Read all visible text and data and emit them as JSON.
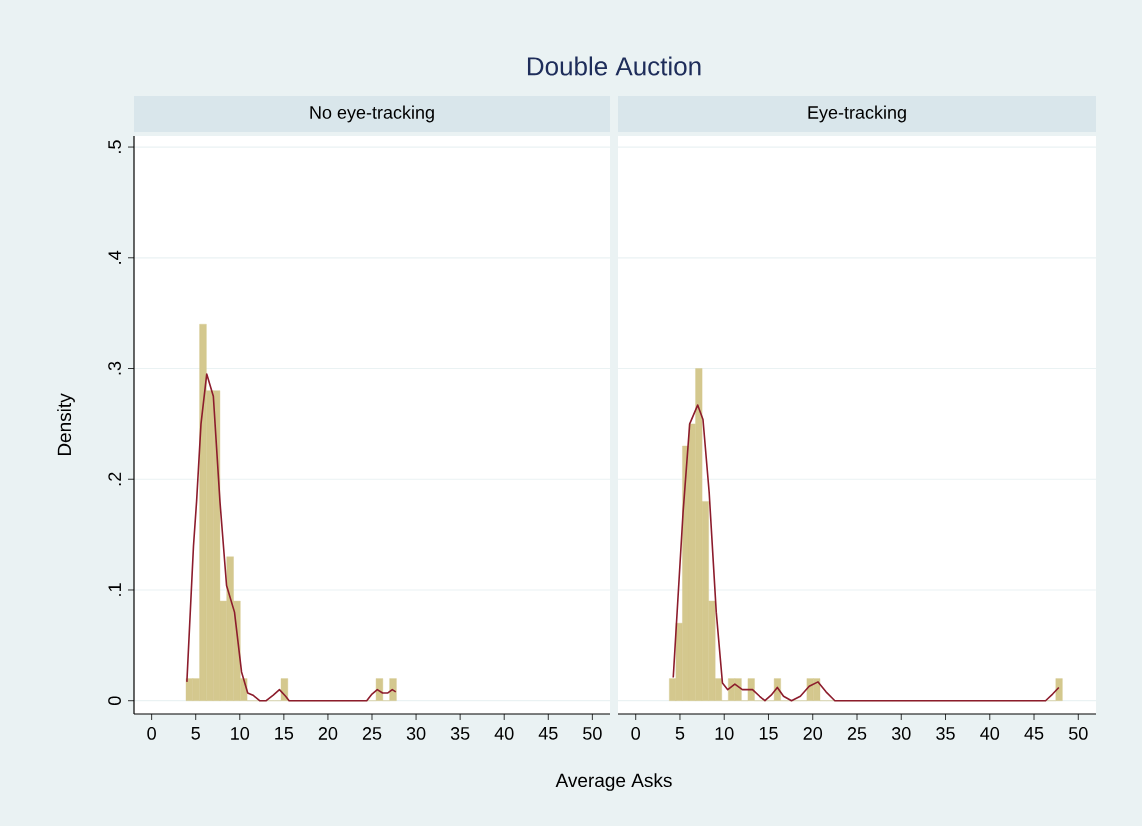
{
  "chart_data": [
    {
      "type": "histogram",
      "title": "Double Auction",
      "subtitle": "No eye-tracking",
      "xlabel": "Average Asks",
      "ylabel": "Density",
      "bins": [
        3.9,
        4.67,
        5.44,
        6.21,
        6.98,
        7.75,
        8.52,
        9.29,
        10.06,
        10.83,
        11.6,
        12.37,
        13.14,
        13.91,
        14.68,
        15.45,
        16.22,
        16.99,
        17.76,
        18.53,
        19.3,
        20.07,
        20.84,
        21.61,
        22.38,
        23.15,
        23.92,
        24.69,
        25.46,
        26.23,
        27.0,
        27.77
      ],
      "values": [
        0.02,
        0.02,
        0.34,
        0.28,
        0.28,
        0.09,
        0.13,
        0.09,
        0.02,
        0,
        0,
        0,
        0,
        0,
        0.02,
        0,
        0,
        0,
        0,
        0,
        0,
        0,
        0,
        0,
        0,
        0,
        0,
        0,
        0.02,
        0,
        0.02
      ],
      "color": "#d4c88e",
      "series": [
        {
          "type": "line",
          "color": "#8c1c2c",
          "x": [
            4.0,
            4.75,
            5.1,
            5.6,
            6.25,
            7.0,
            7.75,
            8.5,
            9.4,
            10.2,
            10.9,
            11.5,
            12.25,
            13.0,
            13.8,
            14.5,
            15.2,
            15.6,
            24.4,
            25.0,
            25.6,
            26.2,
            26.8,
            27.3,
            27.7
          ],
          "values": [
            0.017,
            0.14,
            0.18,
            0.25,
            0.295,
            0.275,
            0.18,
            0.104,
            0.08,
            0.026,
            0.007,
            0.005,
            0,
            0,
            0.005,
            0.01,
            0.004,
            0,
            0,
            0.006,
            0.01,
            0.007,
            0.007,
            0.01,
            0.008
          ]
        }
      ],
      "xlim": [
        -2,
        52
      ],
      "ylim": [
        -0.012,
        0.51
      ],
      "xticks": [
        0,
        5,
        10,
        15,
        20,
        25,
        30,
        35,
        40,
        45,
        50
      ],
      "yticks": [
        {
          "value": 0,
          "label": "0"
        },
        {
          "value": 0.1,
          "label": ".1"
        },
        {
          "value": 0.2,
          "label": ".2"
        },
        {
          "value": 0.3,
          "label": ".3"
        },
        {
          "value": 0.4,
          "label": ".4"
        },
        {
          "value": 0.5,
          "label": ".5"
        }
      ],
      "grid": "y"
    },
    {
      "type": "histogram",
      "subtitle": "Eye-tracking",
      "bins": [
        3.8,
        4.54,
        5.28,
        6.02,
        6.76,
        7.5,
        8.24,
        8.98,
        9.72,
        10.46,
        11.2,
        11.94,
        12.68,
        13.42,
        14.16,
        14.9,
        15.64,
        16.38,
        17.12,
        17.86,
        18.6,
        19.34,
        20.08,
        20.82,
        21.56,
        22.3,
        23.04,
        23.78,
        24.52,
        25.26,
        26.0,
        26.74,
        27.48,
        28.22,
        28.96,
        29.7,
        30.44,
        31.18,
        31.92,
        32.66,
        33.4,
        34.14,
        34.88,
        35.62,
        36.36,
        37.1,
        37.84,
        38.58,
        39.32,
        40.06,
        40.8,
        41.54,
        42.28,
        43.02,
        43.76,
        44.5,
        45.24,
        45.98,
        46.72,
        47.46,
        48.2
      ],
      "values": [
        0.02,
        0.07,
        0.23,
        0.25,
        0.3,
        0.18,
        0.09,
        0.02,
        0,
        0.02,
        0.02,
        0,
        0.02,
        0,
        0,
        0,
        0.02,
        0,
        0,
        0,
        0,
        0.02,
        0.02,
        0,
        0,
        0,
        0,
        0,
        0,
        0,
        0,
        0,
        0,
        0,
        0,
        0,
        0,
        0,
        0,
        0,
        0,
        0,
        0,
        0,
        0,
        0,
        0,
        0,
        0,
        0,
        0,
        0,
        0,
        0,
        0,
        0,
        0,
        0,
        0,
        0.02
      ],
      "color": "#d4c88e",
      "series": [
        {
          "type": "line",
          "color": "#8c1c2c",
          "x": [
            4.24,
            5.35,
            6.1,
            7.0,
            7.6,
            8.3,
            9.1,
            9.8,
            10.4,
            11.2,
            12.05,
            13.2,
            14.0,
            14.6,
            15.3,
            16.0,
            16.7,
            17.6,
            18.6,
            19.6,
            20.6,
            21.5,
            22.5,
            30,
            40,
            46.3,
            47.1,
            47.8
          ],
          "values": [
            0.021,
            0.17,
            0.25,
            0.267,
            0.254,
            0.188,
            0.08,
            0.016,
            0.01,
            0.015,
            0.01,
            0.01,
            0.004,
            0,
            0.005,
            0.012,
            0.004,
            0,
            0.004,
            0.013,
            0.017,
            0.008,
            0,
            0,
            0,
            0,
            0.006,
            0.012
          ]
        }
      ],
      "xlim": [
        -2,
        52
      ],
      "ylim": [
        -0.012,
        0.51
      ],
      "xticks": [
        0,
        5,
        10,
        15,
        20,
        25,
        30,
        35,
        40,
        45,
        50
      ],
      "yticks": [
        0,
        0.1,
        0.2,
        0.3,
        0.4,
        0.5
      ],
      "grid": "y",
      "tick_labels": "x"
    }
  ]
}
